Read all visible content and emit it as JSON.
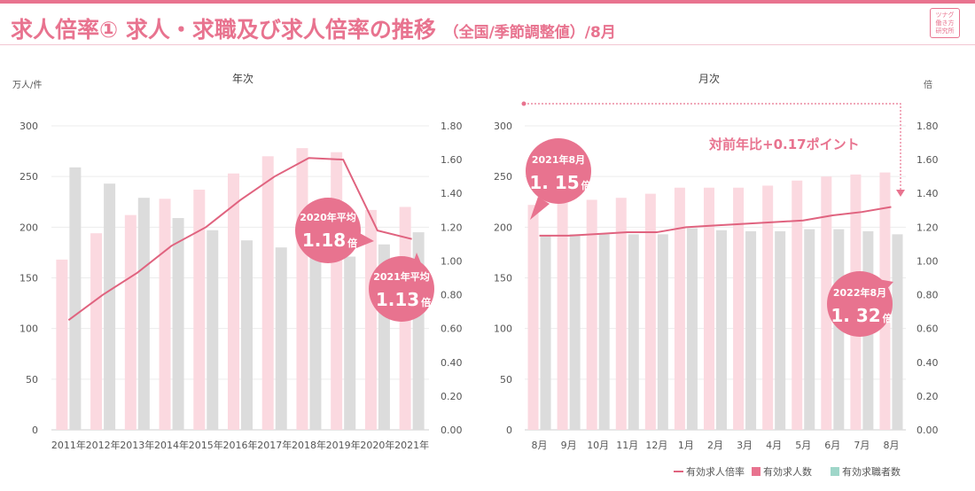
{
  "header": {
    "title": "求人倍率① 求人・求職及び求人倍率の推移",
    "subtitle": "（全国/季節調整値）/8月",
    "logo_lines": [
      "ツナグ",
      "働き方",
      "研究所"
    ]
  },
  "colors": {
    "accent": "#e8738f",
    "job_offers_bar": "#fbd9e0",
    "job_seekers_bar": "#dcdcdc",
    "ratio_line": "#e0637f",
    "legend_seekers": "#9fd6c9"
  },
  "legend": {
    "ratio": "有効求人倍率",
    "offers": "有効求人数",
    "seekers": "有効求職者数"
  },
  "chart_data": [
    {
      "type": "bar",
      "title": "年次",
      "ylabel": "万人/件",
      "y2label": "",
      "ylim": [
        0,
        300
      ],
      "y2lim": [
        0,
        1.8
      ],
      "yticks": [
        "0",
        "50",
        "100",
        "150",
        "200",
        "250",
        "300"
      ],
      "y2ticks": [
        "0.00",
        "0.20",
        "0.40",
        "0.60",
        "0.80",
        "1.00",
        "1.20",
        "1.40",
        "1.60",
        "1.80"
      ],
      "categories": [
        "2011年",
        "2012年",
        "2013年",
        "2014年",
        "2015年",
        "2016年",
        "2017年",
        "2018年",
        "2019年",
        "2020年",
        "2021年"
      ],
      "series": [
        {
          "name": "有効求人数",
          "values": [
            168,
            194,
            212,
            228,
            237,
            253,
            270,
            278,
            274,
            217,
            220
          ]
        },
        {
          "name": "有効求職者数",
          "values": [
            259,
            243,
            229,
            209,
            197,
            187,
            180,
            172,
            171,
            183,
            195
          ]
        },
        {
          "name": "有効求人倍率",
          "axis": "right",
          "values": [
            0.65,
            0.8,
            0.93,
            1.09,
            1.2,
            1.36,
            1.5,
            1.61,
            1.6,
            1.18,
            1.13
          ]
        }
      ],
      "annotations": [
        {
          "label": "2020年平均",
          "value": "1.18",
          "unit": "倍"
        },
        {
          "label": "2021年平均",
          "value": "1.13",
          "unit": "倍"
        }
      ]
    },
    {
      "type": "bar",
      "title": "月次",
      "ylabel": "",
      "y2label": "倍",
      "ylim": [
        0,
        300
      ],
      "y2lim": [
        0,
        1.8
      ],
      "yticks": [
        "0",
        "50",
        "100",
        "150",
        "200",
        "250",
        "300"
      ],
      "y2ticks": [
        "0.00",
        "0.20",
        "0.40",
        "0.60",
        "0.80",
        "1.00",
        "1.20",
        "1.40",
        "1.60",
        "1.80"
      ],
      "categories": [
        "8月",
        "9月",
        "10月",
        "11月",
        "12月",
        "1月",
        "2月",
        "3月",
        "4月",
        "5月",
        "6月",
        "7月",
        "8月"
      ],
      "series": [
        {
          "name": "有効求人数",
          "values": [
            222,
            224,
            227,
            229,
            233,
            239,
            239,
            239,
            241,
            246,
            250,
            252,
            254
          ]
        },
        {
          "name": "有効求職者数",
          "values": [
            192,
            193,
            193,
            193,
            193,
            199,
            197,
            196,
            196,
            198,
            198,
            196,
            193
          ]
        },
        {
          "name": "有効求人倍率",
          "axis": "right",
          "values": [
            1.15,
            1.15,
            1.16,
            1.17,
            1.17,
            1.2,
            1.21,
            1.22,
            1.23,
            1.24,
            1.27,
            1.29,
            1.32
          ]
        }
      ],
      "annotations": [
        {
          "label": "2021年8月",
          "value": "1. 15",
          "unit": "倍"
        },
        {
          "label": "2022年8月",
          "value": "1. 32",
          "unit": "倍"
        },
        {
          "label": "対前年比+0.17ポイント"
        }
      ]
    }
  ]
}
